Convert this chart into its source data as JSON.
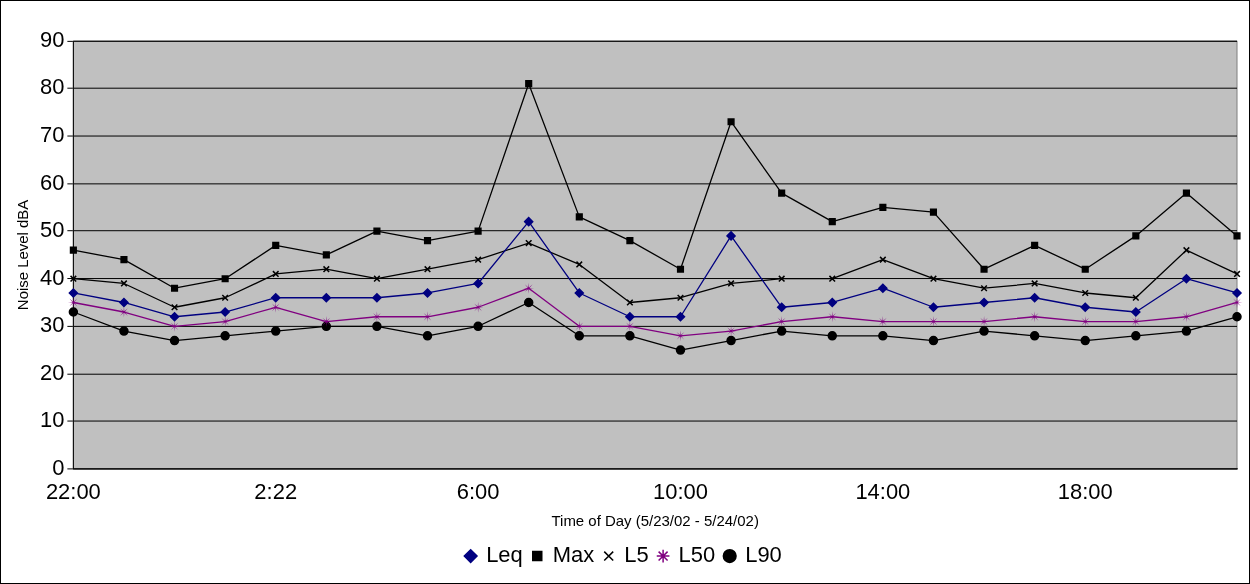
{
  "chart_data": {
    "type": "line",
    "xlabel": "Time of Day (5/23/02 - 5/24/02)",
    "ylabel": "Noise Level dBA",
    "categories": [
      "22:00",
      null,
      null,
      null,
      "2:22",
      null,
      null,
      null,
      "6:00",
      null,
      null,
      null,
      "10:00",
      null,
      null,
      null,
      "14:00",
      null,
      null,
      null,
      "18:00",
      null,
      null,
      null
    ],
    "series": [
      {
        "name": "Leq",
        "color": "#000080",
        "marker": "diamond",
        "values": [
          37,
          35,
          32,
          33,
          36,
          36,
          36,
          37,
          39,
          52,
          37,
          32,
          32,
          49,
          34,
          35,
          38,
          34,
          35,
          36,
          34,
          33,
          40,
          37
        ]
      },
      {
        "name": "Max",
        "color": "#000000",
        "marker": "square",
        "values": [
          46,
          44,
          38,
          40,
          47,
          45,
          50,
          48,
          50,
          81,
          53,
          48,
          42,
          73,
          58,
          52,
          55,
          54,
          42,
          47,
          42,
          49,
          58,
          49
        ]
      },
      {
        "name": "L5",
        "color": "#000000",
        "marker": "cross",
        "values": [
          40,
          39,
          34,
          36,
          41,
          42,
          40,
          42,
          44,
          47.5,
          43,
          35,
          36,
          39,
          40,
          40,
          44,
          40,
          38,
          39,
          37,
          36,
          46,
          41
        ]
      },
      {
        "name": "L50",
        "color": "#800080",
        "marker": "star",
        "values": [
          35,
          33,
          30,
          31,
          34,
          31,
          32,
          32,
          34,
          38,
          30,
          30,
          28,
          29,
          31,
          32,
          31,
          31,
          31,
          32,
          31,
          31,
          32,
          35
        ]
      },
      {
        "name": "L90",
        "color": "#000000",
        "marker": "circle",
        "values": [
          33,
          29,
          27,
          28,
          29,
          30,
          30,
          28,
          30,
          35,
          28,
          28,
          25,
          27,
          29,
          28,
          28,
          27,
          29,
          28,
          27,
          28,
          29,
          32
        ]
      }
    ],
    "ylim": [
      0,
      90
    ],
    "yticks": [
      0,
      10,
      20,
      30,
      40,
      50,
      60,
      70,
      80,
      90
    ],
    "grid": "y",
    "legend": "bottom",
    "line_style": "solid"
  }
}
